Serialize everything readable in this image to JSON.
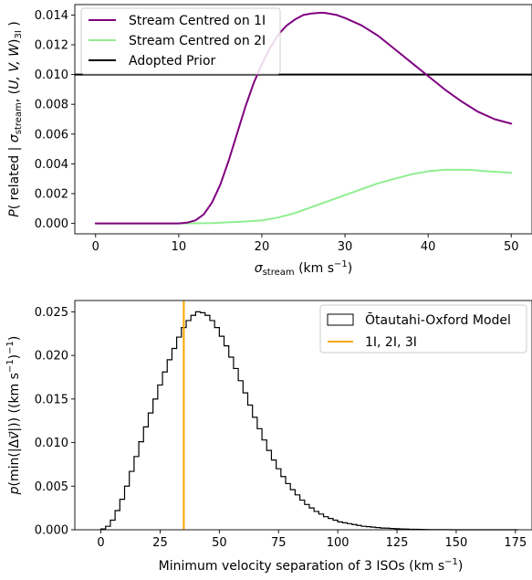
{
  "chart_data": [
    {
      "type": "line",
      "xlabel": "σ_stream (km s⁻¹)",
      "ylabel": "P( related | σ_stream, (U, V, W)_3I )",
      "xlim": [
        -2.5,
        52.5
      ],
      "ylim": [
        -0.0007,
        0.0147
      ],
      "x_ticks": [
        0,
        10,
        20,
        30,
        40,
        50
      ],
      "x_tick_labels": [
        "0",
        "10",
        "20",
        "30",
        "40",
        "50"
      ],
      "y_ticks": [
        0.0,
        0.002,
        0.004,
        0.006,
        0.008,
        0.01,
        0.012,
        0.014
      ],
      "y_tick_labels": [
        "0.000",
        "0.002",
        "0.004",
        "0.006",
        "0.008",
        "0.010",
        "0.012",
        "0.014"
      ],
      "legend_position": "top-left",
      "series": [
        {
          "name": "Stream Centred on 1I",
          "color": "#800080",
          "x": [
            0,
            5,
            10,
            11,
            12,
            13,
            14,
            15,
            16,
            17,
            18,
            19,
            20,
            21,
            22,
            23,
            24,
            25,
            26,
            27,
            27.5,
            28,
            29,
            30,
            32,
            34,
            36,
            38,
            40,
            42,
            44,
            46,
            48,
            50
          ],
          "y": [
            0.0,
            0.0,
            0.0,
            5e-05,
            0.0002,
            0.0006,
            0.0014,
            0.0026,
            0.0042,
            0.006,
            0.0078,
            0.0094,
            0.0107,
            0.0118,
            0.0127,
            0.0133,
            0.0137,
            0.014,
            0.0141,
            0.01415,
            0.01415,
            0.0141,
            0.014,
            0.0138,
            0.0133,
            0.0126,
            0.0117,
            0.0108,
            0.0099,
            0.009,
            0.0082,
            0.0075,
            0.007,
            0.0067
          ]
        },
        {
          "name": "Stream Centred on 2I",
          "color": "#90ee90",
          "x": [
            0,
            5,
            10,
            14,
            17,
            20,
            22,
            24,
            26,
            28,
            30,
            32,
            34,
            36,
            38,
            40,
            42,
            43.5,
            45,
            47,
            50
          ],
          "y": [
            0.0,
            0.0,
            0.0,
            2e-05,
            0.0001,
            0.0002,
            0.0004,
            0.0007,
            0.0011,
            0.0015,
            0.0019,
            0.0023,
            0.0027,
            0.003,
            0.0033,
            0.0035,
            0.0036,
            0.0036,
            0.0036,
            0.0035,
            0.0034
          ]
        },
        {
          "name": "Adopted Prior",
          "color": "#000000",
          "x": [
            -2.5,
            52.5
          ],
          "y": [
            0.01,
            0.01
          ]
        }
      ]
    },
    {
      "type": "histogram",
      "xlabel": "Minimum velocity separation of 3 ISOs (km s⁻¹)",
      "ylabel": "p(min(|Δv|)) ((km s⁻¹)⁻¹)",
      "xlim": [
        -11,
        182
      ],
      "ylim": [
        0,
        0.0263
      ],
      "x_ticks": [
        0,
        25,
        50,
        75,
        100,
        125,
        150,
        175
      ],
      "x_tick_labels": [
        "0",
        "25",
        "50",
        "75",
        "100",
        "125",
        "150",
        "175"
      ],
      "y_ticks": [
        0.0,
        0.005,
        0.01,
        0.015,
        0.02,
        0.025
      ],
      "y_tick_labels": [
        "0.000",
        "0.005",
        "0.010",
        "0.015",
        "0.020",
        "0.025"
      ],
      "legend_position": "top-right",
      "bin_width": 2,
      "bin_start": 0,
      "series": [
        {
          "name": "Ōtautahi-Oxford Model",
          "color": "#000000",
          "values": [
            0.0001,
            0.0004,
            0.0011,
            0.0022,
            0.0035,
            0.005,
            0.0067,
            0.0084,
            0.0101,
            0.0118,
            0.0134,
            0.015,
            0.0166,
            0.0181,
            0.0195,
            0.0208,
            0.0221,
            0.0232,
            0.024,
            0.0246,
            0.025,
            0.0249,
            0.0246,
            0.024,
            0.0232,
            0.0222,
            0.0211,
            0.0198,
            0.0185,
            0.0171,
            0.0157,
            0.0143,
            0.0129,
            0.0116,
            0.0103,
            0.0091,
            0.008,
            0.007,
            0.0061,
            0.0053,
            0.0046,
            0.004,
            0.0034,
            0.0029,
            0.0025,
            0.0021,
            0.0018,
            0.0015,
            0.0013,
            0.0011,
            0.0009,
            0.0008,
            0.0007,
            0.0006,
            0.0005,
            0.0004,
            0.00035,
            0.0003,
            0.00025,
            0.0002,
            0.00018,
            0.00015,
            0.00012,
            0.0001,
            8e-05,
            6e-05,
            5e-05,
            4e-05,
            3e-05,
            2e-05,
            2e-05,
            1e-05,
            1e-05,
            1e-05,
            0.0,
            0.0,
            0.0,
            0.0,
            0.0,
            0.0,
            0.0,
            0.0,
            0.0,
            0.0,
            0.0,
            0.0,
            0.0,
            0.0
          ]
        },
        {
          "name": "1I, 2I, 3I",
          "color": "#ffa500",
          "vline_x": 35
        }
      ]
    }
  ]
}
